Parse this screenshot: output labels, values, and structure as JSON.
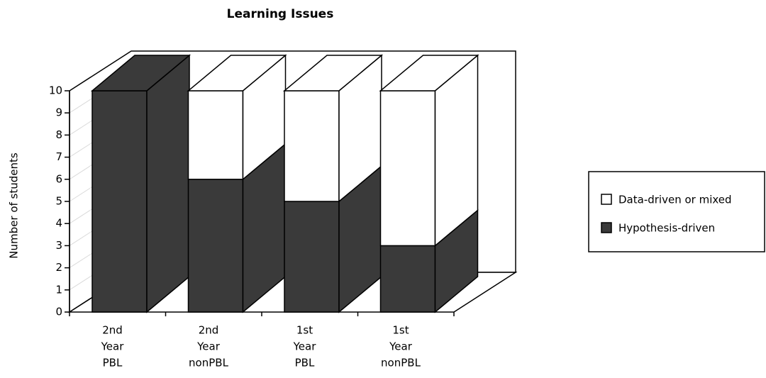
{
  "chart_data": {
    "type": "bar3d_stacked",
    "title": "Learning Issues",
    "ylabel": "Number of students",
    "categories": [
      [
        "2nd",
        "Year",
        "PBL"
      ],
      [
        "2nd",
        "Year",
        "nonPBL"
      ],
      [
        "1st",
        "Year",
        "PBL"
      ],
      [
        "1st",
        "Year",
        "nonPBL"
      ]
    ],
    "series": [
      {
        "name": "Hypothesis-driven",
        "color": "#3a3a3a",
        "values": [
          10,
          6,
          5,
          3
        ]
      },
      {
        "name": "Data-driven or mixed",
        "color": "#ffffff",
        "values": [
          0,
          4,
          5,
          7
        ]
      }
    ],
    "ylim": [
      0,
      10
    ],
    "yticks": [
      0,
      1,
      2,
      3,
      4,
      5,
      6,
      7,
      8,
      9,
      10
    ],
    "legend": "right"
  }
}
